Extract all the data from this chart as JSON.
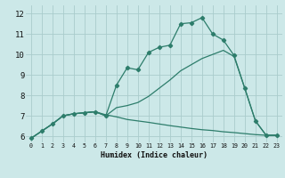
{
  "xlabel": "Humidex (Indice chaleur)",
  "bg_color": "#cce8e8",
  "grid_color": "#aacccc",
  "line_color": "#2d7d6b",
  "xlim": [
    -0.5,
    23.5
  ],
  "ylim": [
    5.7,
    12.4
  ],
  "xticks": [
    0,
    1,
    2,
    3,
    4,
    5,
    6,
    7,
    8,
    9,
    10,
    11,
    12,
    13,
    14,
    15,
    16,
    17,
    18,
    19,
    20,
    21,
    22,
    23
  ],
  "yticks": [
    6,
    7,
    8,
    9,
    10,
    11,
    12
  ],
  "line1_x": [
    0,
    1,
    2,
    3,
    4,
    5,
    6,
    7,
    8,
    9,
    10,
    11,
    12,
    13,
    14,
    15,
    16,
    17,
    18,
    19,
    20,
    21,
    22,
    23
  ],
  "line1_y": [
    5.9,
    6.25,
    6.6,
    7.0,
    7.1,
    7.15,
    7.2,
    7.0,
    8.5,
    9.35,
    9.25,
    10.1,
    10.35,
    10.45,
    11.5,
    11.55,
    11.8,
    11.0,
    10.7,
    9.95,
    8.35,
    6.75,
    6.05,
    6.05
  ],
  "line2_x": [
    0,
    1,
    2,
    3,
    4,
    5,
    6,
    7,
    8,
    9,
    10,
    11,
    12,
    13,
    14,
    15,
    16,
    17,
    18,
    19,
    20,
    21,
    22,
    23
  ],
  "line2_y": [
    5.9,
    6.25,
    6.6,
    7.0,
    7.1,
    7.15,
    7.2,
    7.0,
    7.4,
    7.5,
    7.65,
    7.95,
    8.35,
    8.75,
    9.2,
    9.5,
    9.8,
    10.0,
    10.2,
    9.9,
    8.35,
    6.75,
    6.05,
    6.05
  ],
  "line3_x": [
    0,
    1,
    2,
    3,
    4,
    5,
    6,
    7,
    8,
    9,
    10,
    11,
    12,
    13,
    14,
    15,
    16,
    17,
    18,
    19,
    20,
    21,
    22,
    23
  ],
  "line3_y": [
    5.9,
    6.25,
    6.6,
    7.0,
    7.1,
    7.15,
    7.2,
    7.05,
    6.95,
    6.82,
    6.75,
    6.68,
    6.6,
    6.52,
    6.45,
    6.38,
    6.32,
    6.28,
    6.22,
    6.18,
    6.13,
    6.08,
    6.05,
    6.05
  ]
}
